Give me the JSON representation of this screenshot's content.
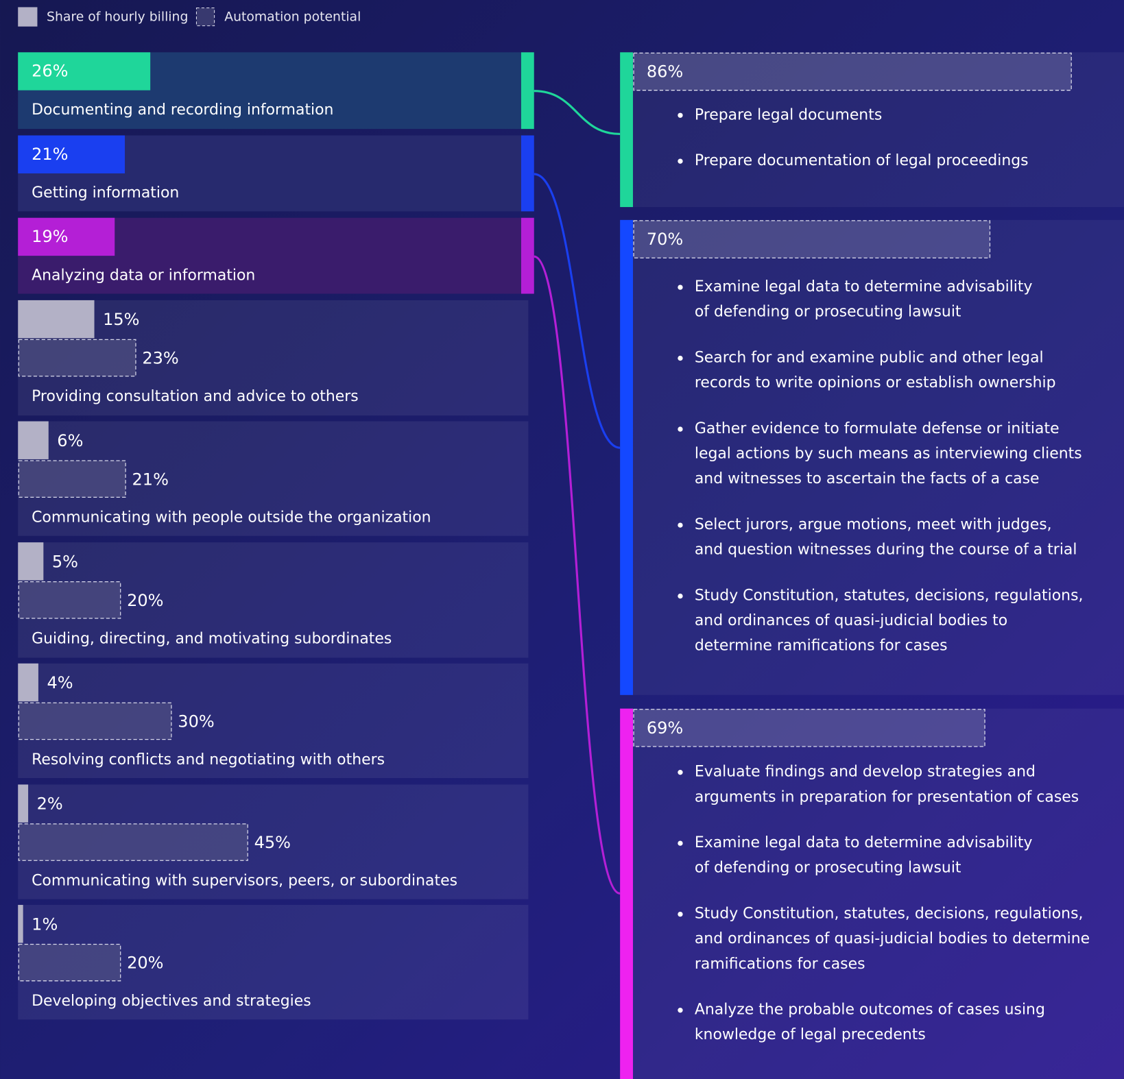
{
  "chart_data": {
    "type": "bar",
    "categories": [
      "Documenting and recording information",
      "Getting information",
      "Analyzing data or information",
      "Providing consultation and advice to others",
      "Communicating with people outside the organization",
      "Guiding, directing, and motivating subordinates",
      "Resolving conflicts and negotiating with others",
      "Communicating with supervisors, peers, or subordinates",
      "Developing objectives and strategies"
    ],
    "series": [
      {
        "name": "Share of hourly billing",
        "color": "#b3b1c6",
        "values": [
          26,
          21,
          19,
          15,
          6,
          5,
          4,
          2,
          1
        ],
        "value_labels": [
          "26%",
          "21%",
          "19%",
          "15%",
          "6%",
          "5%",
          "4%",
          "2%",
          "1%"
        ]
      },
      {
        "name": "Automation potential",
        "color": "#5a5a86",
        "values": [
          null,
          null,
          null,
          23,
          21,
          20,
          30,
          45,
          20
        ],
        "value_labels": [
          null,
          null,
          null,
          "23%",
          "21%",
          "20%",
          "30%",
          "45%",
          "20%"
        ]
      }
    ],
    "details": [
      {
        "value": 86,
        "value_label": "86%",
        "color": "#1fd69a",
        "tasks": [
          [
            "Prepare legal documents"
          ],
          [
            "Prepare documentation of legal proceedings"
          ]
        ]
      },
      {
        "value": 70,
        "value_label": "70%",
        "color": "#1a3ff0",
        "tasks": [
          [
            "Examine legal data to determine advisability",
            "of defending or prosecuting lawsuit"
          ],
          [
            "Search for and examine public and other legal",
            "records to write opinions or establish ownership"
          ],
          [
            "Gather evidence to formulate defense or initiate",
            "legal actions by such means as interviewing clients",
            "and witnesses to ascertain the facts of a case"
          ],
          [
            "Select jurors, argue motions, meet with judges,",
            "and question witnesses during the course of a trial"
          ],
          [
            "Study Constitution, statutes, decisions, regulations,",
            "and ordinances of quasi-judicial bodies to",
            "determine ramifications for cases"
          ]
        ]
      },
      {
        "value": 69,
        "value_label": "69%",
        "color": "#b41fd6",
        "tasks": [
          [
            "Evaluate findings and develop strategies and",
            "arguments in preparation for presentation of cases"
          ],
          [
            "Examine legal data to determine advisability",
            "of defending or prosecuting lawsuit"
          ],
          [
            "Study Constitution, statutes, decisions, regulations,",
            "and ordinances of quasi-judicial bodies to determine",
            "ramifications for cases"
          ],
          [
            "Analyze the probable outcomes of cases using",
            "knowledge of legal precedents"
          ]
        ]
      }
    ]
  }
}
